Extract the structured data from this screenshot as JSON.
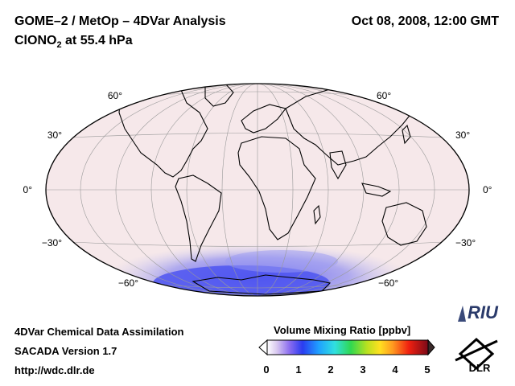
{
  "header": {
    "title": "GOME–2 / MetOp – 4DVar Analysis",
    "datetime": "Oct 08, 2008, 12:00 GMT",
    "species_main": "ClONO",
    "species_sub": "2",
    "species_rest": " at 55.4 hPa"
  },
  "map": {
    "lat_labels_left": [
      "60°",
      "30°",
      "0°",
      "−30°",
      "−60°"
    ],
    "lat_labels_right": [
      "60°",
      "30°",
      "0°",
      "−30°",
      "−60°"
    ],
    "projection": "Hammer-Aitoff (global)",
    "background_color": "#f6e8ea"
  },
  "colorbar": {
    "title": "Volume Mixing Ratio [ppbv]",
    "ticks": [
      "0",
      "1",
      "2",
      "3",
      "4",
      "5"
    ],
    "min": 0,
    "max": 5
  },
  "footer": {
    "line1": "4DVar Chemical Data Assimilation",
    "line2": "SACADA Version 1.7",
    "line3": "http://wdc.dlr.de"
  },
  "logos": {
    "riu": "RIU",
    "dlr": "DLR"
  }
}
